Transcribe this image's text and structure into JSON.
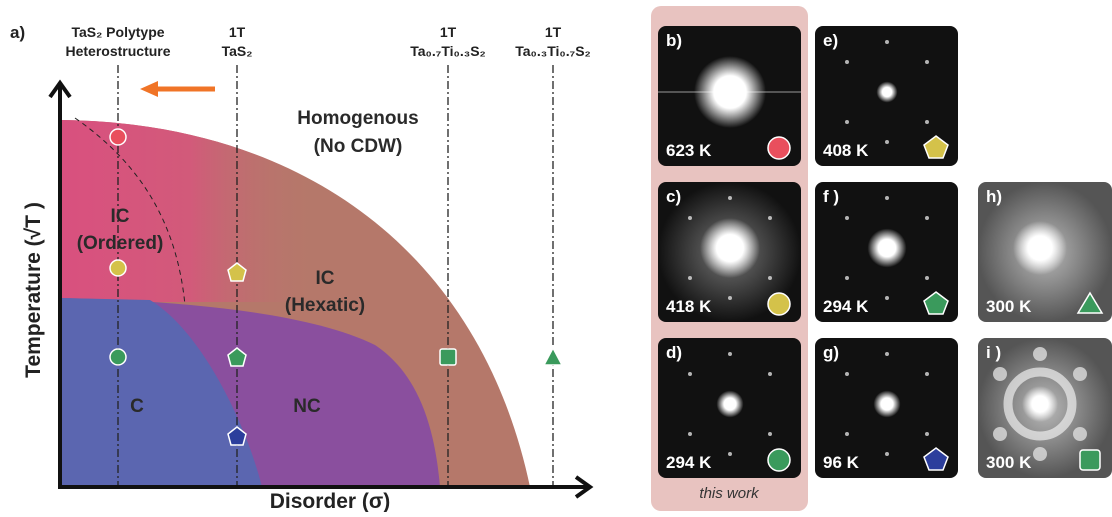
{
  "panel_a": {
    "label": "a)",
    "columns": [
      {
        "line1": "TaS₂ Polytype",
        "line2": "Heterostructure"
      },
      {
        "line1": "1T",
        "line2": "TaS₂"
      },
      {
        "line1": "1T",
        "line2": "Ta₀.₇Ti₀.₃S₂"
      },
      {
        "line1": "1T",
        "line2": "Ta₀.₃Ti₀.₇S₂"
      }
    ],
    "regions": {
      "homogenous": {
        "line1": "Homogenous",
        "line2": "(No CDW)"
      },
      "ic_ordered": {
        "line1": "IC",
        "line2": "(Ordered)"
      },
      "ic_hexatic": {
        "line1": "IC",
        "line2": "(Hexatic)"
      },
      "commensurate": "C",
      "nearly_commensurate": "NC"
    },
    "y_axis": "Temperature (√T )",
    "x_axis": "Disorder (σ)"
  },
  "panels": [
    {
      "label": "b)",
      "temperature": "623 K"
    },
    {
      "label": "c)",
      "temperature": "418 K"
    },
    {
      "label": "d)",
      "temperature": "294 K"
    },
    {
      "label": "e)",
      "temperature": "408 K"
    },
    {
      "label": "f )",
      "temperature": "294 K"
    },
    {
      "label": "g)",
      "temperature": "96 K"
    },
    {
      "label": "h)",
      "temperature": "300 K"
    },
    {
      "label": "i )",
      "temperature": "300 K"
    }
  ],
  "note": "this work"
}
